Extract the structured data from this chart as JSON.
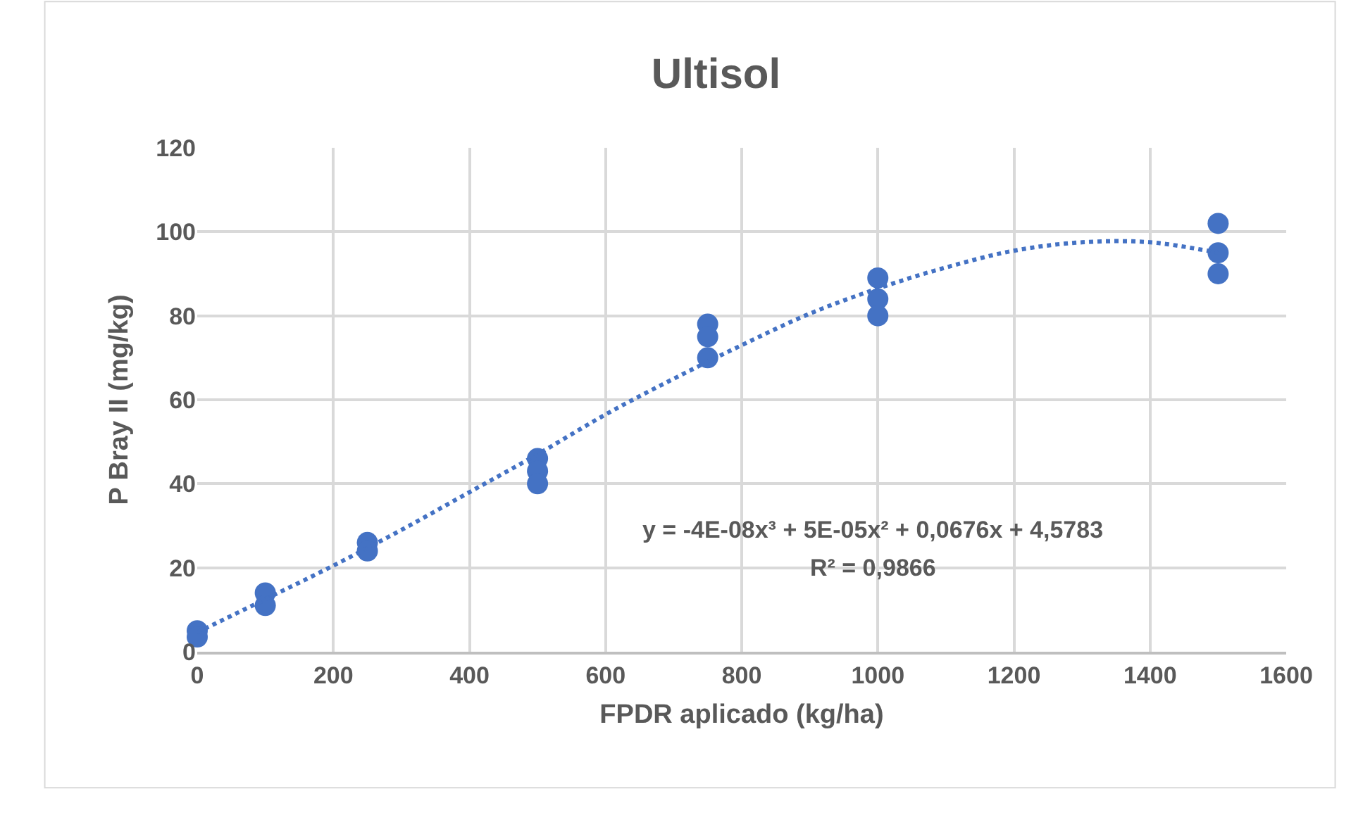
{
  "chart_data": {
    "type": "scatter",
    "title": "Ultisol",
    "xlabel": "FPDR aplicado (kg/ha)",
    "ylabel": "P Bray II (mg/kg)",
    "series": [
      {
        "color": "#4472c4",
        "marker": "circle",
        "x": [
          0,
          0,
          100,
          100,
          250,
          250,
          500,
          500,
          500,
          750,
          750,
          750,
          1000,
          1000,
          1000,
          1500,
          1500,
          1500
        ],
        "values": [
          5,
          3.5,
          14,
          11,
          26,
          24,
          46,
          43,
          40,
          78,
          75,
          70,
          89,
          84,
          80,
          102,
          95,
          90
        ]
      },
      {
        "type": "line",
        "color": "#4472c4",
        "line_style": "dotted",
        "marker": "none",
        "x": [
          0,
          100,
          200,
          300,
          400,
          500,
          600,
          700,
          800,
          900,
          1000,
          1100,
          1200,
          1300,
          1400,
          1500
        ],
        "values": [
          4.6,
          12.5,
          20.5,
          29,
          38,
          47,
          56.5,
          65,
          73,
          80.5,
          86.5,
          91.5,
          95.5,
          97.5,
          97.5,
          95
        ]
      }
    ],
    "annotations": [
      "y = -4E-08x³ + 5E-05x² + 0,0676x + 4,5783",
      "R² = 0,9866"
    ],
    "xlim": [
      0,
      1600
    ],
    "xticks": [
      0,
      200,
      400,
      600,
      800,
      1000,
      1200,
      1400,
      1600
    ],
    "ylim": [
      0,
      120
    ],
    "yticks": [
      0,
      20,
      40,
      60,
      80,
      100,
      120
    ],
    "grid": true
  }
}
